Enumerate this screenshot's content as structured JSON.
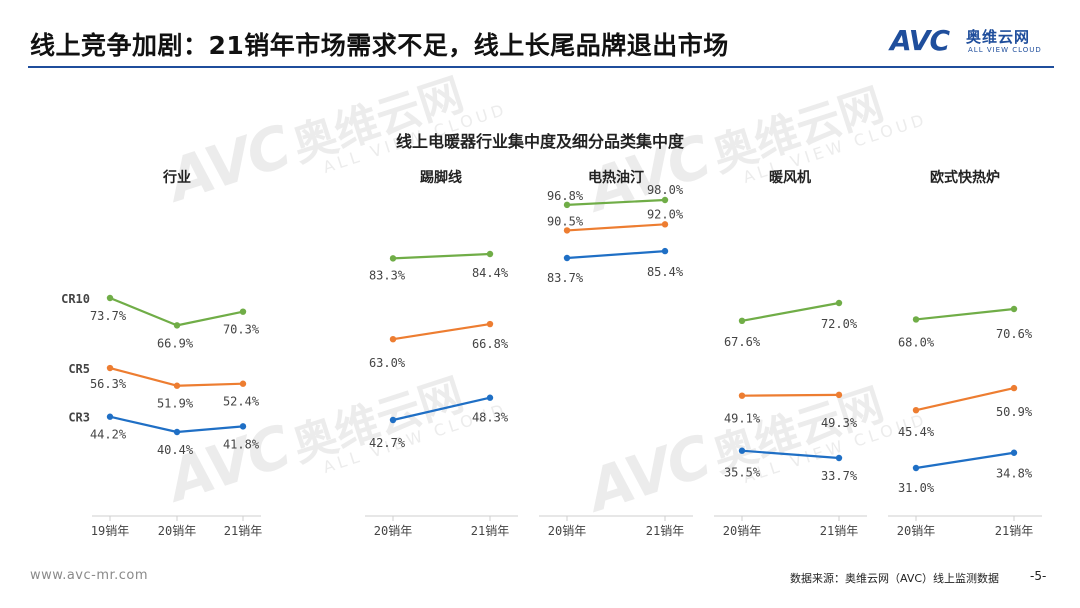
{
  "header": {
    "title": "线上竞争加剧：21销年市场需求不足，线上长尾品牌退出市场",
    "logo_mark": "AVC",
    "logo_cn": "奥维云网",
    "logo_en": "ALL VIEW CLOUD"
  },
  "watermark": {
    "mark": "AVC",
    "cn": "奥维云网",
    "en": "ALL VIEW CLOUD"
  },
  "colors": {
    "CR10": "#70ad47",
    "CR5": "#ed7d31",
    "CR3": "#1f6fc5",
    "accent": "#1f4e9c"
  },
  "chart_data": {
    "type": "line",
    "title": "线上电暖器行业集中度及细分品类集中度",
    "series_labels": [
      "CR10",
      "CR5",
      "CR3"
    ],
    "panels": [
      {
        "name": "行业",
        "categories": [
          "19销年",
          "20销年",
          "21销年"
        ],
        "series": [
          {
            "name": "CR10",
            "values": [
              73.7,
              66.9,
              70.3
            ],
            "labels": [
              "73.7%",
              "66.9%",
              "70.3%"
            ]
          },
          {
            "name": "CR5",
            "values": [
              56.3,
              51.9,
              52.4
            ],
            "labels": [
              "56.3%",
              "51.9%",
              "52.4%"
            ]
          },
          {
            "name": "CR3",
            "values": [
              44.2,
              40.4,
              41.8
            ],
            "labels": [
              "44.2%",
              "40.4%",
              "41.8%"
            ]
          }
        ]
      },
      {
        "name": "踢脚线",
        "categories": [
          "20销年",
          "21销年"
        ],
        "series": [
          {
            "name": "CR10",
            "values": [
              83.3,
              84.4
            ],
            "labels": [
              "83.3%",
              "84.4%"
            ]
          },
          {
            "name": "CR5",
            "values": [
              63.0,
              66.8
            ],
            "labels": [
              "63.0%",
              "66.8%"
            ]
          },
          {
            "name": "CR3",
            "values": [
              42.7,
              48.3
            ],
            "labels": [
              "42.7%",
              "48.3%"
            ]
          }
        ]
      },
      {
        "name": "电热油汀",
        "categories": [
          "20销年",
          "21销年"
        ],
        "series": [
          {
            "name": "CR10",
            "values": [
              96.8,
              98.0
            ],
            "labels": [
              "96.8%",
              "98.0%"
            ]
          },
          {
            "name": "CR5",
            "values": [
              90.5,
              92.0
            ],
            "labels": [
              "90.5%",
              "92.0%"
            ]
          },
          {
            "name": "CR3",
            "values": [
              83.7,
              85.4
            ],
            "labels": [
              "83.7%",
              "85.4%"
            ]
          }
        ]
      },
      {
        "name": "暖风机",
        "categories": [
          "20销年",
          "21销年"
        ],
        "series": [
          {
            "name": "CR10",
            "values": [
              67.6,
              72.0
            ],
            "labels": [
              "67.6%",
              "72.0%"
            ]
          },
          {
            "name": "CR5",
            "values": [
              49.1,
              49.3
            ],
            "labels": [
              "49.1%",
              "49.3%"
            ]
          },
          {
            "name": "CR3",
            "values": [
              35.5,
              33.7
            ],
            "labels": [
              "35.5%",
              "33.7%"
            ]
          }
        ]
      },
      {
        "name": "欧式快热炉",
        "categories": [
          "20销年",
          "21销年"
        ],
        "series": [
          {
            "name": "CR10",
            "values": [
              68.0,
              70.6
            ],
            "labels": [
              "68.0%",
              "70.6%"
            ]
          },
          {
            "name": "CR5",
            "values": [
              45.4,
              50.9
            ],
            "labels": [
              "45.4%",
              "50.9%"
            ]
          },
          {
            "name": "CR3",
            "values": [
              31.0,
              34.8
            ],
            "labels": [
              "31.0%",
              "34.8%"
            ]
          }
        ]
      }
    ]
  },
  "footer": {
    "url": "www.avc-mr.com",
    "source": "数据来源：奥维云网（AVC）线上监测数据",
    "page": "-5-"
  }
}
